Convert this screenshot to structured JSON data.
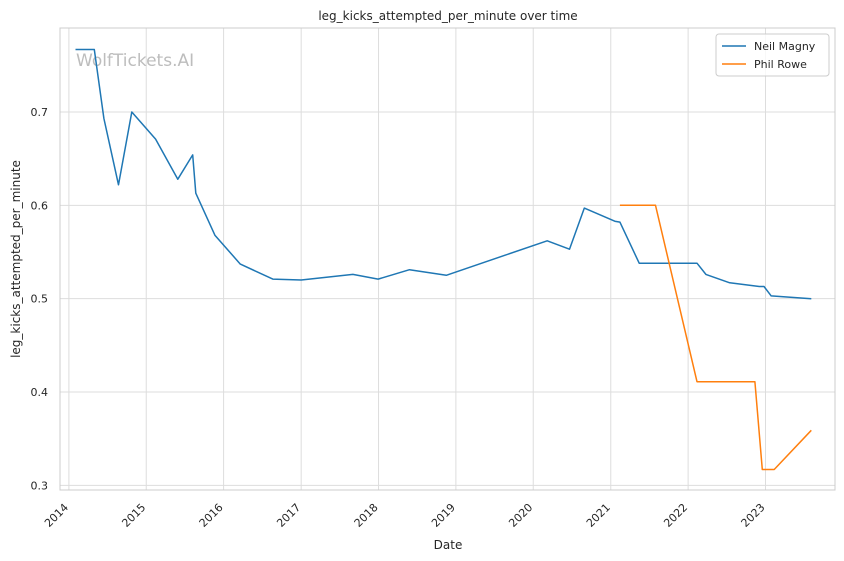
{
  "watermark": "WolfTickets.AI",
  "chart_data": {
    "type": "line",
    "title": "leg_kicks_attempted_per_minute over time",
    "xlabel": "Date",
    "ylabel": "leg_kicks_attempted_per_minute",
    "x_ticks": [
      "2014",
      "2015",
      "2016",
      "2017",
      "2018",
      "2019",
      "2020",
      "2021",
      "2022",
      "2023"
    ],
    "y_ticks": [
      "0.3",
      "0.4",
      "0.5",
      "0.6",
      "0.7"
    ],
    "xlim": [
      "2013-11-20",
      "2023-11-25"
    ],
    "ylim": [
      0.295,
      0.79
    ],
    "grid": true,
    "legend_position": "top-right",
    "series": [
      {
        "name": "Neil Magny",
        "color": "#1f77b4",
        "points": [
          [
            "2014-02-01",
            0.767
          ],
          [
            "2014-05-01",
            0.767
          ],
          [
            "2014-06-15",
            0.693
          ],
          [
            "2014-08-23",
            0.622
          ],
          [
            "2014-10-25",
            0.7
          ],
          [
            "2015-02-14",
            0.671
          ],
          [
            "2015-05-30",
            0.628
          ],
          [
            "2015-08-08",
            0.654
          ],
          [
            "2015-08-23",
            0.613
          ],
          [
            "2015-11-21",
            0.568
          ],
          [
            "2016-03-20",
            0.537
          ],
          [
            "2016-08-20",
            0.521
          ],
          [
            "2017-01-01",
            0.52
          ],
          [
            "2017-09-02",
            0.526
          ],
          [
            "2017-12-30",
            0.521
          ],
          [
            "2018-05-27",
            0.531
          ],
          [
            "2018-11-17",
            0.525
          ],
          [
            "2020-03-07",
            0.562
          ],
          [
            "2020-06-20",
            0.553
          ],
          [
            "2020-08-29",
            0.597
          ],
          [
            "2021-01-20",
            0.583
          ],
          [
            "2021-02-13",
            0.582
          ],
          [
            "2021-05-15",
            0.538
          ],
          [
            "2022-02-12",
            0.538
          ],
          [
            "2022-03-26",
            0.526
          ],
          [
            "2022-07-16",
            0.517
          ],
          [
            "2022-12-03",
            0.513
          ],
          [
            "2022-12-25",
            0.513
          ],
          [
            "2023-01-28",
            0.503
          ],
          [
            "2023-08-05",
            0.5
          ]
        ]
      },
      {
        "name": "Phil Rowe",
        "color": "#ff7f0e",
        "points": [
          [
            "2021-02-13",
            0.6
          ],
          [
            "2021-07-31",
            0.6
          ],
          [
            "2022-02-12",
            0.411
          ],
          [
            "2022-11-12",
            0.411
          ],
          [
            "2022-12-17",
            0.317
          ],
          [
            "2023-02-11",
            0.317
          ],
          [
            "2023-08-05",
            0.359
          ]
        ]
      }
    ]
  }
}
